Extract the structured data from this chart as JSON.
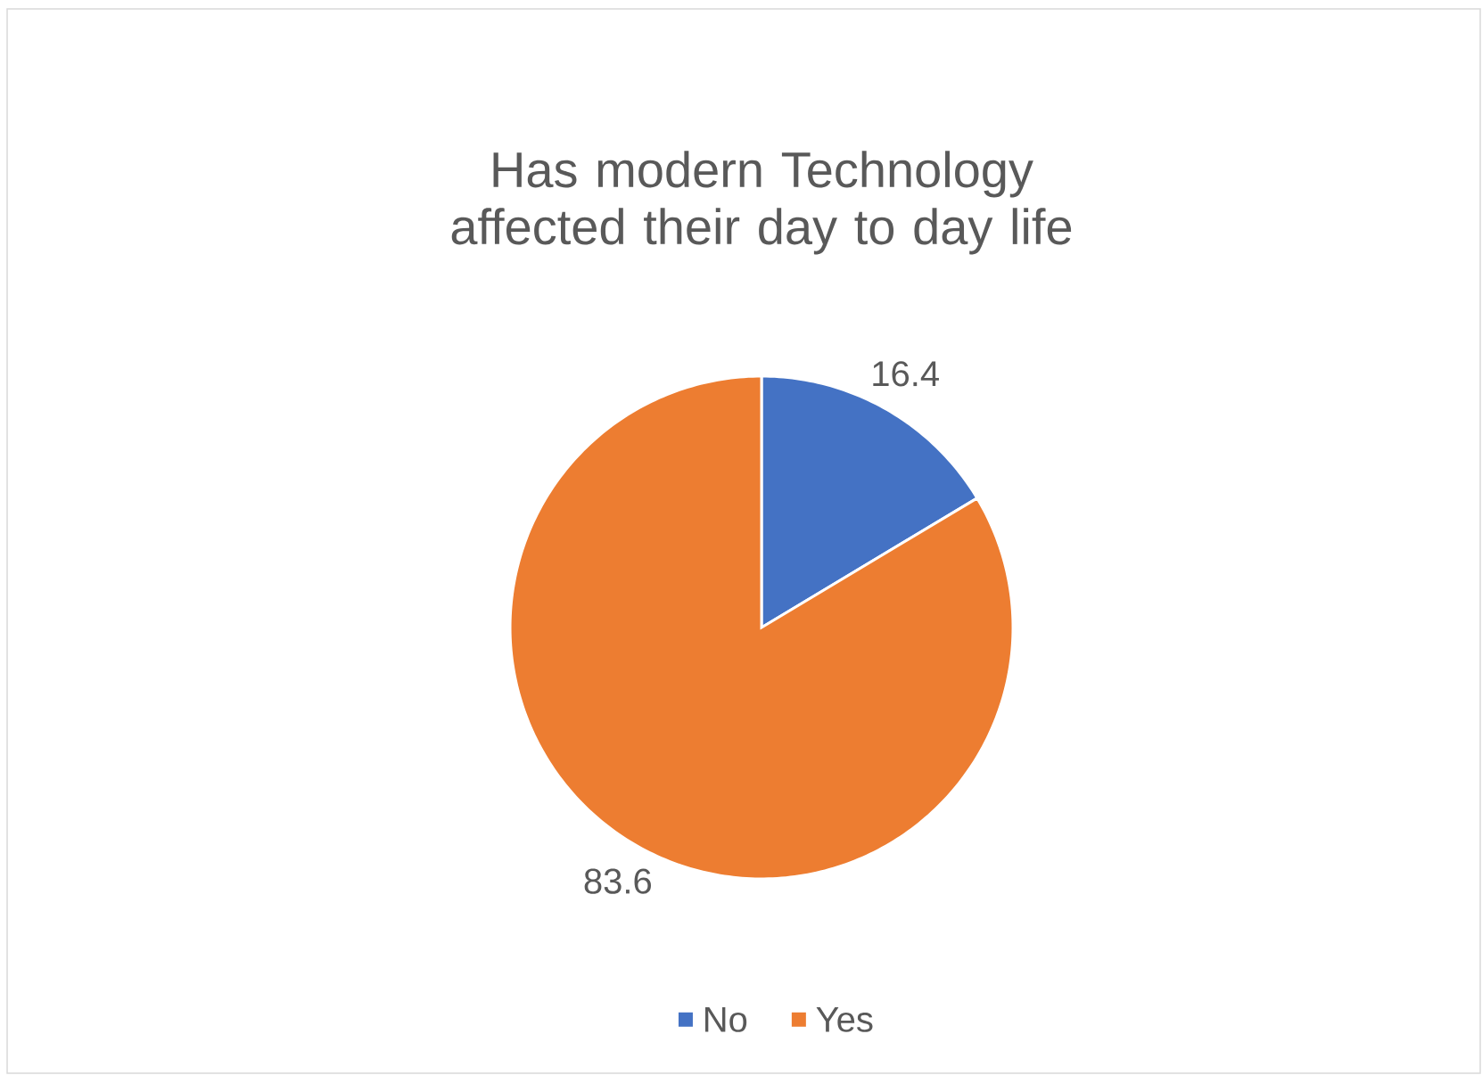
{
  "chart_data": {
    "type": "pie",
    "title": "Has modern Technology affected their day to day life",
    "categories": [
      "No",
      "Yes"
    ],
    "values": [
      16.4,
      83.6
    ],
    "colors": [
      "#4472c4",
      "#ed7d31"
    ],
    "data_labels": true,
    "legend": "bottom"
  }
}
